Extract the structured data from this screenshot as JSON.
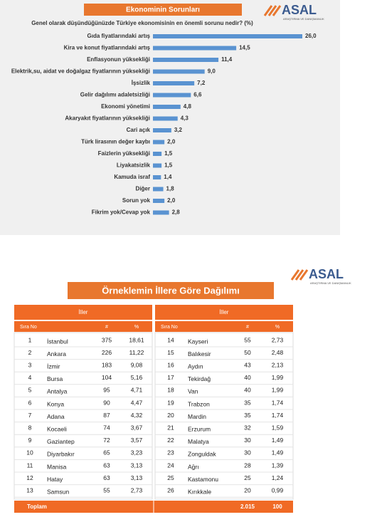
{
  "chart_data": {
    "type": "bar",
    "orientation": "horizontal",
    "title": "Ekonominin Sorunları",
    "subtitle": "Genel olarak düşündüğünüzde  Türkiye ekonomisinin en önemli sorunu nedir? (%)",
    "categories": [
      "Gıda fiyatlarındaki artış",
      "Kira ve konut fiyatlarındaki artış",
      "Enflasyonun yüksekliği",
      "Elektrik,su, aidat ve doğalgaz fiyatlarının yüksekliği",
      "İşsizlik",
      "Gelir dağılımı adaletsizliği",
      "Ekonomi yönetimi",
      "Akaryakıt fiyatlarının yüksekliği",
      "Cari açık",
      "Türk lirasının değer kaybı",
      "Faizlerin yüksekliği",
      "Liyakatsizlik",
      "Kamuda israf",
      "Diğer",
      "Sorun yok",
      "Fikrim yok/Cevap yok"
    ],
    "values": [
      26.0,
      14.5,
      11.4,
      9.0,
      7.2,
      6.6,
      4.8,
      4.3,
      3.2,
      2.0,
      1.5,
      1.5,
      1.4,
      1.8,
      2.0,
      2.8
    ],
    "value_labels": [
      "26,0",
      "14,5",
      "11,4",
      "9,0",
      "7,2",
      "6,6",
      "4,8",
      "4,3",
      "3,2",
      "2,0",
      "1,5",
      "1,5",
      "1,4",
      "1,8",
      "2,0",
      "2,8"
    ],
    "color": "#5a93d1",
    "xlim": [
      0,
      26
    ]
  },
  "logo": {
    "name": "ASAL",
    "tagline": "ARAŞTIRMA VE DANIŞMANLIK"
  },
  "table": {
    "title": "Örneklemin İllere Göre Dağılımı",
    "group_header": "İller",
    "columns": [
      "Sıra No",
      "#",
      "%"
    ],
    "left_rows": [
      [
        "1",
        "İstanbul",
        "375",
        "18,61"
      ],
      [
        "2",
        "Ankara",
        "226",
        "11,22"
      ],
      [
        "3",
        "İzmir",
        "183",
        "9,08"
      ],
      [
        "4",
        "Bursa",
        "104",
        "5,16"
      ],
      [
        "5",
        "Antalya",
        "95",
        "4,71"
      ],
      [
        "6",
        "Konya",
        "90",
        "4,47"
      ],
      [
        "7",
        "Adana",
        "87",
        "4,32"
      ],
      [
        "8",
        "Kocaeli",
        "74",
        "3,67"
      ],
      [
        "9",
        "Gaziantep",
        "72",
        "3,57"
      ],
      [
        "10",
        "Diyarbakır",
        "65",
        "3,23"
      ],
      [
        "11",
        "Manisa",
        "63",
        "3,13"
      ],
      [
        "12",
        "Hatay",
        "63",
        "3,13"
      ],
      [
        "13",
        "Samsun",
        "55",
        "2,73"
      ]
    ],
    "right_rows": [
      [
        "14",
        "Kayseri",
        "55",
        "2,73"
      ],
      [
        "15",
        "Balıkesir",
        "50",
        "2,48"
      ],
      [
        "16",
        "Aydın",
        "43",
        "2,13"
      ],
      [
        "17",
        "Tekirdağ",
        "40",
        "1,99"
      ],
      [
        "18",
        "Van",
        "40",
        "1,99"
      ],
      [
        "19",
        "Trabzon",
        "35",
        "1,74"
      ],
      [
        "20",
        "Mardin",
        "35",
        "1,74"
      ],
      [
        "21",
        "Erzurum",
        "32",
        "1,59"
      ],
      [
        "22",
        "Malatya",
        "30",
        "1,49"
      ],
      [
        "23",
        "Zonguldak",
        "30",
        "1,49"
      ],
      [
        "24",
        "Ağrı",
        "28",
        "1,39"
      ],
      [
        "25",
        "Kastamonu",
        "25",
        "1,24"
      ],
      [
        "26",
        "Kırıkkale",
        "20",
        "0,99"
      ]
    ],
    "total": {
      "label": "Toplam",
      "count": "2.015",
      "percent": "100"
    }
  }
}
